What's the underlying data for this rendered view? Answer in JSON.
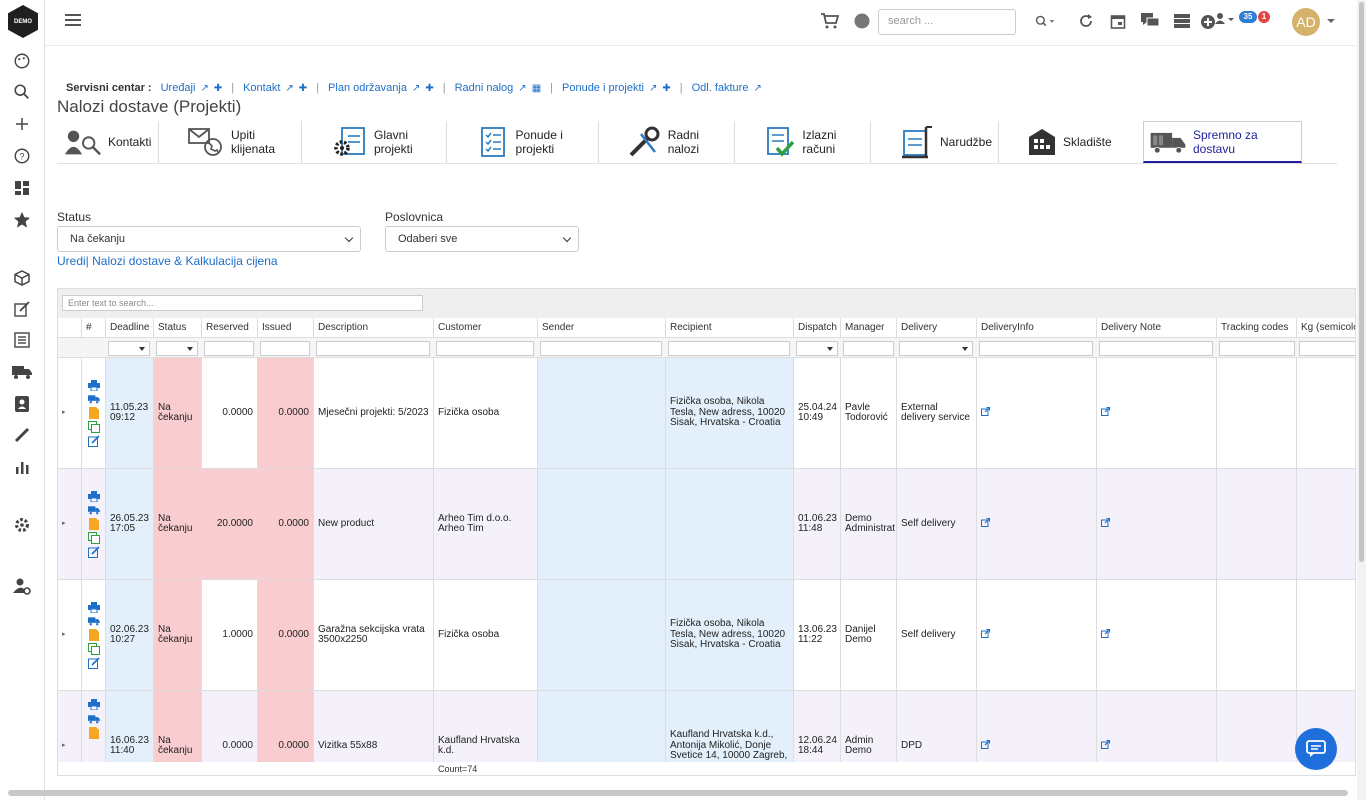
{
  "app": {
    "logo_text": "DEMO"
  },
  "topbar": {
    "search_placeholder": "search ...",
    "badge_messages": "35",
    "badge_alerts": "1",
    "avatar_initials": "AD"
  },
  "service_center": {
    "label": "Servisni centar :",
    "links": [
      "Uređaji",
      "Kontakt",
      "Plan održavanja",
      "Radni nalog",
      "Ponude i projekti",
      "Odl. fakture"
    ]
  },
  "page": {
    "title": "Nalozi dostave (Projekti)"
  },
  "modules": [
    "Kontakti",
    "Upiti klijenata",
    "Glavni projekti",
    "Ponude i projekti",
    "Radni nalozi",
    "Izlazni računi",
    "Narudžbe",
    "Skladište",
    "Spremno za dostavu"
  ],
  "filters": {
    "status_label": "Status",
    "status_value": "Na čekanju",
    "business_label": "Poslovnica",
    "business_value": "Odaberi sve",
    "edit_link": "Uredi| Nalozi dostave & Kalkulacija cijena"
  },
  "grid": {
    "search_placeholder": "Enter text to search...",
    "columns": [
      "#",
      "Deadline",
      "Status",
      "Reserved",
      "Issued",
      "Description",
      "Customer",
      "Sender",
      "Recipient",
      "Dispatch",
      "Manager",
      "Delivery",
      "DeliveryInfo",
      "Delivery Note",
      "Tracking codes",
      "Kg (semicolo"
    ],
    "rows": [
      {
        "deadline": "11.05.23 09:12",
        "status": "Na čekanju",
        "reserved": "0.0000",
        "issued": "0.0000",
        "description": "Mjesečni projekti: 5/2023",
        "customer": "Fizička osoba",
        "sender": "",
        "recipient": "Fizička osoba, Nikola Tesla, New adress, 10020 Sisak, Hrvatska - Croatia",
        "dispatch": "25.04.24 10:49",
        "manager": "Pavle Todorović",
        "delivery": "External delivery service"
      },
      {
        "deadline": "26.05.23 17:05",
        "status": "Na čekanju",
        "reserved": "20.0000",
        "issued": "0.0000",
        "description": "New product",
        "customer": "Arheo Tim d.o.o. Arheo Tim",
        "sender": "",
        "recipient": "",
        "dispatch": "01.06.23 11:48",
        "manager": "Demo Administrat",
        "delivery": "Self delivery"
      },
      {
        "deadline": "02.06.23 10:27",
        "status": "Na čekanju",
        "reserved": "1.0000",
        "issued": "0.0000",
        "description": "Garažna sekcijska vrata 3500x2250",
        "customer": "Fizička osoba",
        "sender": "",
        "recipient": "Fizička osoba, Nikola Tesla, New adress, 10020 Sisak, Hrvatska - Croatia",
        "dispatch": "13.06.23 11:22",
        "manager": "Danijel Demo",
        "delivery": "Self delivery"
      },
      {
        "deadline": "16.06.23 11:40",
        "status": "Na čekanju",
        "reserved": "0.0000",
        "issued": "0.0000",
        "description": "Vizitka 55x88",
        "customer": "Kaufland Hrvatska k.d.",
        "sender": "",
        "recipient": "Kaufland Hrvatska k.d., Antonija Mikolić, Donje Svetice 14, 10000 Zagreb,",
        "dispatch": "12.06.24 18:44",
        "manager": "Admin Demo",
        "delivery": "DPD"
      }
    ],
    "footer_count": "Count=74"
  }
}
